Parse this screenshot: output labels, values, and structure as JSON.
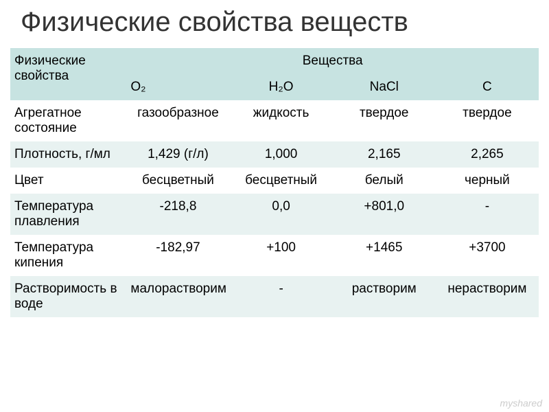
{
  "title": "Физические свойства веществ",
  "colors": {
    "header_bg": "#c7e3e1",
    "row_even_bg": "#e8f2f1",
    "row_odd_bg": "#ffffff",
    "text_color": "#333333",
    "title_fontsize": 40,
    "cell_fontsize": 19
  },
  "table": {
    "header": {
      "property_col": "Физические свойства",
      "substances_col": "Вещества",
      "formulas": {
        "o2": "O₂",
        "h2o": "H₂O",
        "nacl": "NaCl",
        "c": "C"
      }
    },
    "rows": [
      {
        "property": "Агрегатное состояние",
        "o2": "газообразное",
        "h2o": "жидкость",
        "nacl": "твердое",
        "c": "твердое"
      },
      {
        "property": "Плотность, г/мл",
        "o2": "1,429 (г/л)",
        "h2o": "1,000",
        "nacl": "2,165",
        "c": "2,265"
      },
      {
        "property": "Цвет",
        "o2": "бесцветный",
        "h2o": "бесцветный",
        "nacl": "белый",
        "c": "черный"
      },
      {
        "property": "Температура плавления",
        "o2": "-218,8",
        "h2o": "0,0",
        "nacl": "+801,0",
        "c": "-"
      },
      {
        "property": "Температура кипения",
        "o2": "-182,97",
        "h2o": "+100",
        "nacl": "+1465",
        "c": "+3700"
      },
      {
        "property": "Растворимость в воде",
        "o2": "малорастворим",
        "h2o": "-",
        "nacl": "растворим",
        "c": "нерастворим"
      }
    ]
  },
  "watermark": "myshared"
}
